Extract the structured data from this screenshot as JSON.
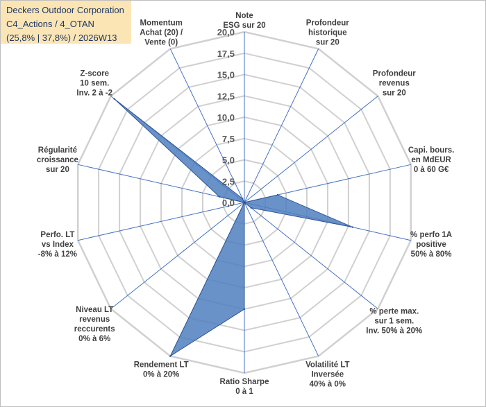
{
  "header": {
    "line1": "Deckers Outdoor Corporation",
    "line2": "C4_Actions / 4_OTAN",
    "line3": "(25,8% | 37,8%) / 2026W13"
  },
  "colors": {
    "fill": "#4f7fbf",
    "stroke": "#2e5597",
    "axis": "#4472c4",
    "grid": "#d0d0d0",
    "title_bg": "#fbe5b5"
  },
  "chart_data": {
    "type": "radar",
    "rmax": 20,
    "ticks": [
      "0,0",
      "2,5",
      "5,0",
      "7,5",
      "10,0",
      "12,5",
      "15,0",
      "17,5",
      "20,0"
    ],
    "axes": [
      [
        "Note",
        "ESG sur 20"
      ],
      [
        "Profondeur",
        "historique",
        "sur 20"
      ],
      [
        "Profondeur",
        "revenus",
        "sur 20"
      ],
      [
        "Capi. bours.",
        "en MdEUR",
        "0 à 60 G€"
      ],
      [
        "% perfo 1A",
        "positive",
        "50% à 80%"
      ],
      [
        "% perte max.",
        "sur 1 sem.",
        "Inv. 50% à 20%"
      ],
      [
        "Volatilité LT",
        "Inversée",
        "40% à 0%"
      ],
      [
        "Ratio Sharpe",
        "0 à 1"
      ],
      [
        "Rendement LT",
        "0% à 20%"
      ],
      [
        "Niveau LT",
        "revenus",
        "reccurents",
        "0% à 6%"
      ],
      [
        "Perfo. LT",
        "vs Index",
        "-8% à 12%"
      ],
      [
        "Régularité",
        "croissance",
        "sur 20"
      ],
      [
        "Z-score",
        "10 sem.",
        "Inv. 2 à -2"
      ],
      [
        "Momentum",
        "Achat (20) /",
        "Vente (0)"
      ]
    ],
    "series": [
      {
        "values": [
          0.0,
          0.0,
          0.0,
          4.0,
          13.0,
          1.0,
          0.0,
          12.5,
          20.0,
          0.0,
          0.0,
          3.0,
          19.5,
          0.5
        ]
      }
    ]
  }
}
